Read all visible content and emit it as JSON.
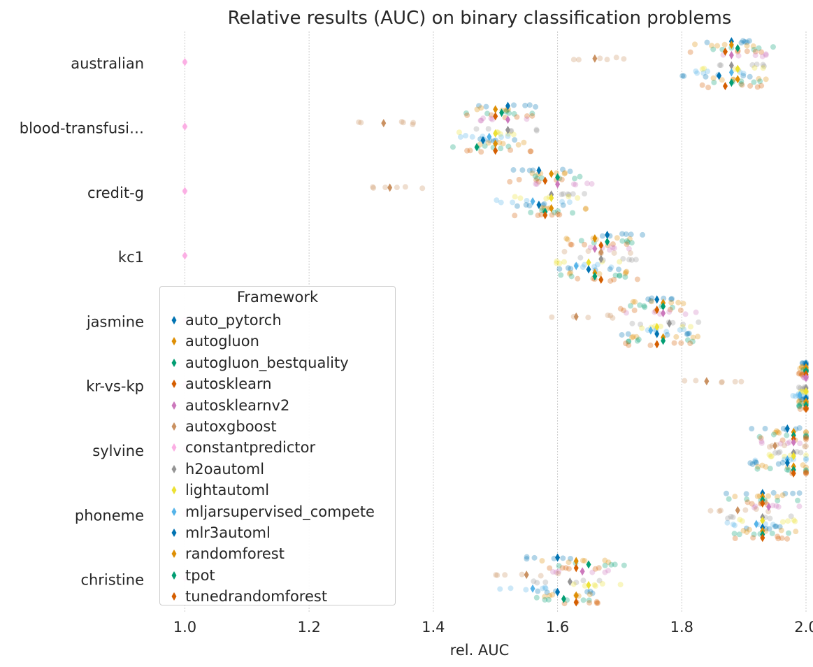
{
  "chart_data": {
    "type": "scatter",
    "title": "Relative results (AUC) on  binary classification problems",
    "xlabel": "rel. AUC",
    "ylabel": "",
    "xlim": [
      0.95,
      2.0
    ],
    "xticks": [
      "1.0",
      "1.2",
      "1.4",
      "1.6",
      "1.8",
      "2.0"
    ],
    "grid": "vertical dotted",
    "legend_title": "Framework",
    "legend_position": "center-left",
    "categories": [
      "australian",
      "blood-transfusi…",
      "credit-g",
      "kc1",
      "jasmine",
      "kr-vs-kp",
      "sylvine",
      "phoneme",
      "christine"
    ],
    "series": [
      {
        "name": "auto_pytorch",
        "color": "#0173b2",
        "values": [
          1.88,
          1.52,
          1.57,
          1.68,
          1.76,
          2.0,
          1.97,
          1.93,
          1.6
        ]
      },
      {
        "name": "autogluon",
        "color": "#de8f05",
        "values": [
          1.88,
          1.5,
          1.59,
          1.66,
          1.77,
          2.0,
          1.98,
          1.93,
          1.63
        ]
      },
      {
        "name": "autogluon_bestquality",
        "color": "#029e73",
        "values": [
          1.89,
          1.51,
          1.6,
          1.68,
          1.77,
          2.0,
          1.98,
          1.93,
          1.65
        ]
      },
      {
        "name": "autosklearn",
        "color": "#d55e00",
        "values": [
          1.87,
          1.5,
          1.58,
          1.67,
          1.76,
          2.0,
          1.98,
          1.93,
          1.63
        ]
      },
      {
        "name": "autosklearnv2",
        "color": "#cc78bc",
        "values": [
          1.88,
          1.52,
          1.6,
          1.66,
          1.77,
          2.0,
          1.98,
          1.94,
          1.64
        ]
      },
      {
        "name": "autoxgboost",
        "color": "#ca9161",
        "values": [
          1.66,
          1.32,
          1.33,
          1.67,
          1.63,
          1.84,
          1.95,
          1.89,
          1.55
        ]
      },
      {
        "name": "constantpredictor",
        "color": "#fbafe4",
        "values": [
          1.0,
          1.0,
          1.0,
          1.0,
          1.0,
          1.0,
          1.0,
          1.0,
          1.0
        ]
      },
      {
        "name": "h2oautoml",
        "color": "#949494",
        "values": [
          1.88,
          1.52,
          1.59,
          1.67,
          1.78,
          2.0,
          1.98,
          1.93,
          1.62
        ]
      },
      {
        "name": "lightautoml",
        "color": "#ece133",
        "values": [
          1.89,
          1.5,
          1.59,
          1.65,
          1.76,
          2.0,
          1.98,
          1.93,
          1.65
        ]
      },
      {
        "name": "mljarsupervised_compete",
        "color": "#56b4e9",
        "values": [
          1.88,
          1.49,
          1.56,
          1.63,
          1.75,
          1.99,
          1.97,
          1.92,
          1.56
        ]
      },
      {
        "name": "mlr3automl",
        "color": "#0173b2",
        "values": [
          1.86,
          1.48,
          1.57,
          1.65,
          1.76,
          2.0,
          1.97,
          1.93,
          1.6
        ]
      },
      {
        "name": "randomforest",
        "color": "#de8f05",
        "values": [
          1.89,
          1.5,
          1.59,
          1.66,
          1.77,
          2.0,
          1.98,
          1.93,
          1.63
        ]
      },
      {
        "name": "tpot",
        "color": "#029e73",
        "values": [
          1.88,
          1.47,
          1.58,
          1.66,
          1.77,
          2.0,
          1.98,
          1.93,
          1.61
        ]
      },
      {
        "name": "tunedrandomforest",
        "color": "#d55e00",
        "values": [
          1.87,
          1.5,
          1.58,
          1.67,
          1.76,
          2.0,
          1.98,
          1.93,
          1.63
        ]
      }
    ]
  }
}
